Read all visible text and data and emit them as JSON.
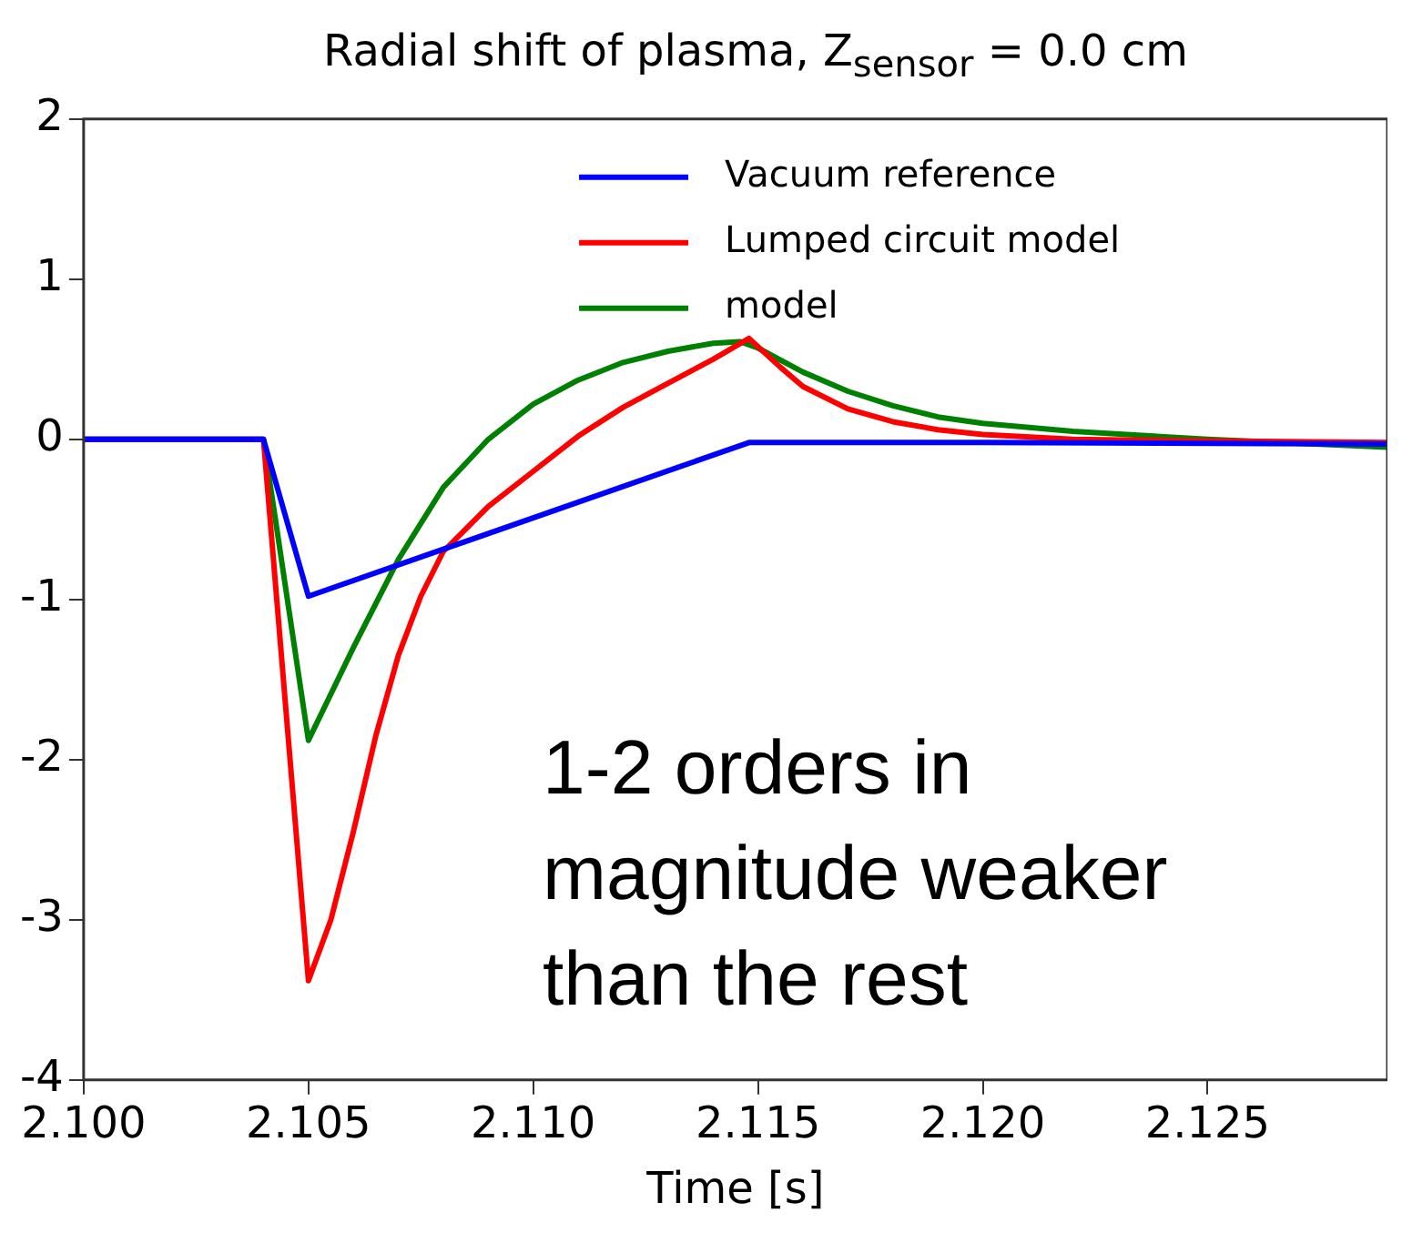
{
  "chart_data": {
    "type": "line",
    "title": "Radial shift of plasma, Z$_{sensor}$ = 0.0 cm",
    "xlabel": "Time [s]",
    "xlim": [
      2.1,
      2.129
    ],
    "xticks": [
      {
        "value": 2.1,
        "label": "2.100"
      },
      {
        "value": 2.105,
        "label": "2.105"
      },
      {
        "value": 2.11,
        "label": "2.110"
      },
      {
        "value": 2.115,
        "label": "2.115"
      },
      {
        "value": 2.12,
        "label": "2.120"
      },
      {
        "value": 2.125,
        "label": "2.125"
      }
    ],
    "ylim": [
      -4,
      2
    ],
    "yticks": [
      -4,
      -3,
      -2,
      -1,
      0,
      1,
      2
    ],
    "legend": "top right",
    "marker": "none",
    "line_style": "solid",
    "annotations": [
      "1-2 orders in magnitude weaker than the rest"
    ],
    "series": [
      {
        "name": "Vacuum reference",
        "color": "#0000ff",
        "x": [
          2.1,
          2.104,
          2.105,
          2.1148,
          2.12,
          2.129
        ],
        "values": [
          0,
          0,
          -0.98,
          -0.02,
          -0.02,
          -0.03
        ]
      },
      {
        "name": "Lumped circuit model",
        "color": "#ff0000",
        "x": [
          2.1,
          2.104,
          2.105,
          2.1055,
          2.106,
          2.1065,
          2.107,
          2.1075,
          2.108,
          2.109,
          2.11,
          2.111,
          2.112,
          2.113,
          2.114,
          2.1148,
          2.1155,
          2.116,
          2.117,
          2.118,
          2.119,
          2.12,
          2.122,
          2.125,
          2.129
        ],
        "values": [
          0,
          0,
          -3.38,
          -3.0,
          -2.45,
          -1.85,
          -1.35,
          -0.98,
          -0.7,
          -0.42,
          -0.2,
          0.02,
          0.2,
          0.35,
          0.5,
          0.63,
          0.45,
          0.33,
          0.19,
          0.11,
          0.06,
          0.03,
          0.0,
          -0.01,
          -0.02
        ]
      },
      {
        "name": "model",
        "color": "#008000",
        "x": [
          2.1,
          2.104,
          2.105,
          2.106,
          2.107,
          2.108,
          2.109,
          2.11,
          2.111,
          2.112,
          2.113,
          2.114,
          2.1146,
          2.115,
          2.116,
          2.117,
          2.118,
          2.119,
          2.12,
          2.122,
          2.125,
          2.129
        ],
        "values": [
          0,
          0,
          -1.88,
          -1.3,
          -0.75,
          -0.3,
          0.0,
          0.22,
          0.37,
          0.48,
          0.55,
          0.6,
          0.61,
          0.57,
          0.42,
          0.3,
          0.21,
          0.14,
          0.1,
          0.05,
          0.0,
          -0.05
        ]
      }
    ]
  }
}
